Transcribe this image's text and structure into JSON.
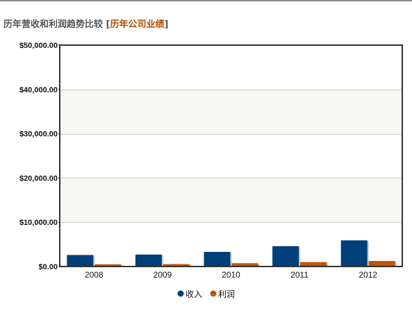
{
  "header": {
    "title": "历年营收和利润趋势比较",
    "bracket_open": "[",
    "subtitle_link": "历年公司业绩",
    "bracket_close": "]"
  },
  "colors": {
    "revenue": "#003f7a",
    "profit": "#c0540a",
    "band": "#f7f7f2",
    "grid": "#c8c8c8",
    "axis": "#333333"
  },
  "chart_data": {
    "type": "bar",
    "title": "",
    "xlabel": "",
    "ylabel": "",
    "categories": [
      "2008",
      "2009",
      "2010",
      "2011",
      "2012"
    ],
    "series": [
      {
        "name": "收入",
        "values": [
          2600,
          2700,
          3300,
          4600,
          5900
        ]
      },
      {
        "name": "利润",
        "values": [
          500,
          550,
          750,
          1000,
          1250
        ]
      }
    ],
    "ylim": [
      0,
      50000
    ],
    "yticks": [
      0,
      10000,
      20000,
      30000,
      40000,
      50000
    ],
    "ytick_labels": [
      "$0.00",
      "$10,000.00",
      "$20,000.00",
      "$30,000.00",
      "$40,000.00",
      "$50,000.00"
    ],
    "grid": true,
    "legend": "bottom-center"
  }
}
